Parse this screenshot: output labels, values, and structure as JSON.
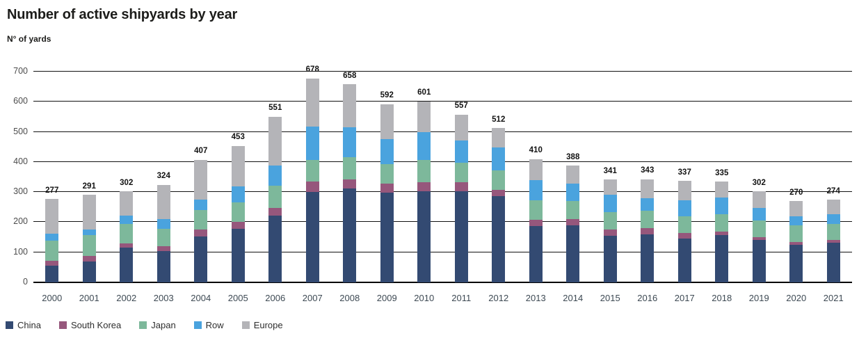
{
  "page": {
    "title": "Number of active shipyards by year",
    "units_label": "N° of yards"
  },
  "chart_data": {
    "type": "bar",
    "subtype": "stacked-vertical",
    "title": "Number of active shipyards by year",
    "ylabel": "N° of yards",
    "xlabel": "",
    "ylim": [
      0,
      700
    ],
    "yticks": [
      0,
      100,
      200,
      300,
      400,
      500,
      600,
      700
    ],
    "grid": true,
    "grid_color": "#121212",
    "legend_position": "bottom-left",
    "categories": [
      "2000",
      "2001",
      "2002",
      "2003",
      "2004",
      "2005",
      "2006",
      "2007",
      "2008",
      "2009",
      "2010",
      "2011",
      "2012",
      "2013",
      "2014",
      "2015",
      "2016",
      "2017",
      "2018",
      "2019",
      "2020",
      "2021"
    ],
    "totals": [
      277,
      291,
      302,
      324,
      407,
      453,
      551,
      678,
      658,
      592,
      601,
      557,
      512,
      410,
      388,
      341,
      343,
      337,
      335,
      302,
      270,
      274
    ],
    "series": [
      {
        "name": "China",
        "color": "#334a72",
        "values": [
          56,
          69,
          115,
          104,
          153,
          178,
          222,
          300,
          312,
          298,
          302,
          303,
          286,
          188,
          190,
          155,
          159,
          145,
          158,
          142,
          124,
          132
        ]
      },
      {
        "name": "South Korea",
        "color": "#96577c",
        "values": [
          15,
          19,
          15,
          17,
          23,
          23,
          25,
          35,
          30,
          31,
          30,
          29,
          21,
          21,
          21,
          20,
          21,
          19,
          10,
          8,
          9,
          10
        ]
      },
      {
        "name": "Japan",
        "color": "#7db89b",
        "values": [
          68,
          69,
          63,
          58,
          64,
          65,
          75,
          72,
          75,
          63,
          75,
          65,
          65,
          63,
          60,
          59,
          58,
          56,
          59,
          55,
          57,
          52
        ]
      },
      {
        "name": "Row",
        "color": "#4aa3de",
        "values": [
          22,
          18,
          29,
          32,
          36,
          52,
          67,
          111,
          98,
          83,
          91,
          75,
          77,
          68,
          56,
          58,
          42,
          53,
          54,
          43,
          29,
          32
        ]
      },
      {
        "name": "Europe",
        "color": "#b4b4b8",
        "values": [
          116,
          116,
          80,
          113,
          131,
          135,
          162,
          160,
          143,
          117,
          103,
          85,
          63,
          70,
          61,
          49,
          63,
          64,
          54,
          54,
          51,
          48
        ]
      }
    ]
  }
}
